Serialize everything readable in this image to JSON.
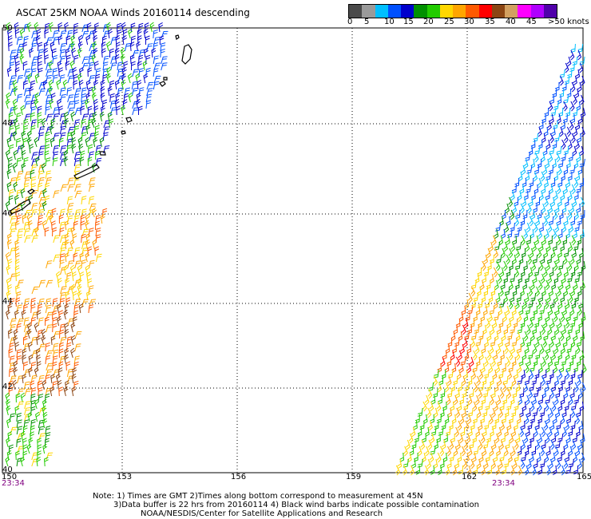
{
  "title": "ASCAT 25KM NOAA Winds 20160114 descending",
  "legend": {
    "colors": [
      "#4a4a4a",
      "#9a9a9a",
      "#00bfff",
      "#0050ff",
      "#0000cc",
      "#009000",
      "#22cc00",
      "#ffd700",
      "#ffa500",
      "#ff5a00",
      "#ff0000",
      "#8b4513",
      "#d2a060",
      "#ff00ff",
      "#b000ff",
      "#5000aa"
    ],
    "tick_labels": [
      "0",
      "5",
      "10",
      "15",
      "20",
      "25",
      "30",
      "35",
      "40",
      "45",
      ">50 knots"
    ]
  },
  "lat_labels": [
    "50",
    "48",
    "46",
    "44",
    "42",
    "40"
  ],
  "lon_labels": [
    "150",
    "153",
    "156",
    "159",
    "162",
    "165"
  ],
  "time_labels": [
    "23:34",
    "23:34"
  ],
  "notes": [
    "Note: 1) Times are GMT 2)Times along bottom correspond to measurement at 45N",
    "3)Data buffer is 22 hrs from 20160114 4) Black wind barbs indicate possible contamination",
    "NOAA/NESDIS/Center for Satellite Applications and Research"
  ],
  "map": {
    "type": "wind-barb swath map",
    "lat_range": [
      40,
      50
    ],
    "lon_range": [
      150,
      165
    ],
    "grid": true,
    "wind_speed_units": "knots",
    "swaths": [
      {
        "name": "west",
        "lat_range": [
          40,
          50
        ],
        "lon_edge_east": "150.5-154.5",
        "colors_by_lat": {
          "48-50": "blue",
          "46-48": "green",
          "44-46": "yellow/orange",
          "40-44": "red/brown"
        }
      },
      {
        "name": "east",
        "lat_range": [
          40,
          50
        ],
        "lon_edge_west": "159.5-165",
        "colors_by_lat": {
          "47-50": "cyan/blue",
          "44-47": "green/yellow",
          "40-44": "orange/red/yellow"
        }
      }
    ]
  }
}
